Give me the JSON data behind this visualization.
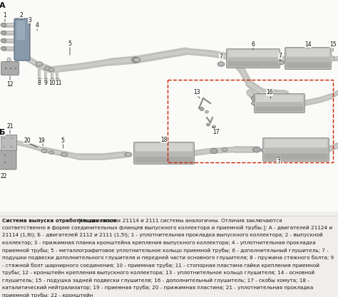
{
  "bg_color": "#f0eeea",
  "diagram_bg": "#ffffff",
  "caption_bold": "Система выпуска отработавших газов",
  "caption_rest": " [На двигателях 21114 и 2111 системы аналогичны. Отличия заключаются соответственно в форме соединительных фланцев выпускного коллектора и приемной трубы.]: А - двигателей 21124 и 21114 (1,6i); Б - двигателей 2112 и 2111 (1,5i); 1 - уплотнительная прокладка выпускного коллектора; 2 - выпускной коллектор; 3 - прижимная планка кронштейна крепления выпускного коллектора; 4 - уплотнительная прокладка приемной трубы; 5 - металлографитовое уплотнительное кольцо приемной трубы; 6 - дополнительный глушитель; 7 - подушки подвески дополнительного глушителя и передней части основного глушителя; 8 - пружина стяжного болта; 9 - стяжной болт шарнирного соединения; 10 - приемная труба; 11 - стопорная пластина гайки крепления приемной трубы; 12 - кронштейн крепления выпускного коллектора; 13 - уплотнительное кольцо глушителя; 14 - основной глушитель; 15 - подушка задней подвески глушителя; 16 - дополнительный глушитель; 17 - скобы хомута; 18 - каталитический нейтрализатор; 19 - приемная труба; 20 - прижимная пластина; 21 - уплотнительная прокладка приемной трубы; 22 - кронштейн",
  "text_color": "#1a1a1a",
  "caption_fontsize": 5.2,
  "pipe_color": "#c0c0bc",
  "pipe_dark": "#888884",
  "pipe_light": "#e8e8e4",
  "muffler_color": "#b8b8b4",
  "dashed_color": "#cc2200",
  "label_color": "#111111",
  "label_fontsize": 5.5,
  "section_label_fontsize": 8.0
}
